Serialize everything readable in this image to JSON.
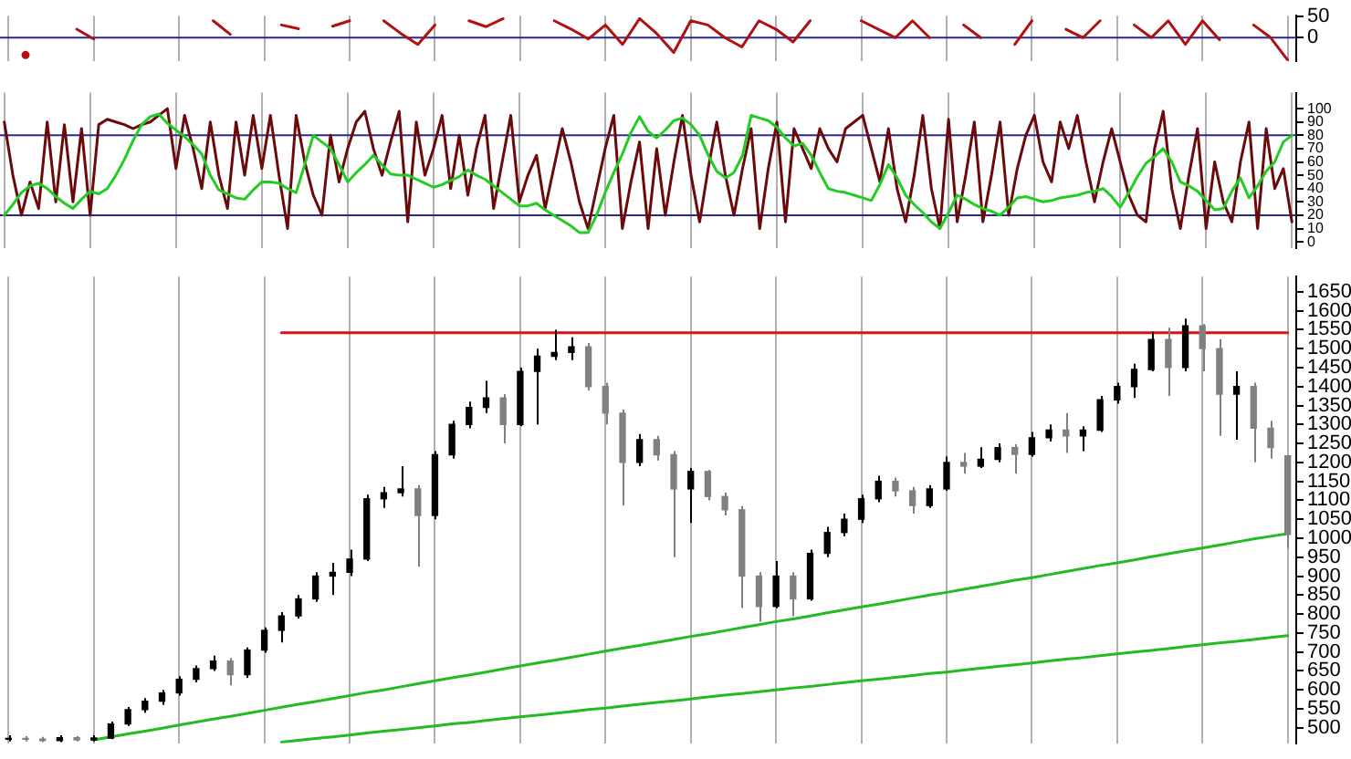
{
  "chart_data": [
    {
      "type": "line",
      "categories": [
        null,
        null,
        null,
        null,
        null,
        null,
        null,
        null,
        null,
        null,
        null,
        null,
        null,
        null,
        null,
        null,
        null,
        null,
        null,
        null,
        null,
        null,
        null,
        null,
        null,
        null,
        null,
        null,
        null,
        null,
        null,
        null,
        null,
        null,
        null,
        null,
        null,
        null,
        null,
        null,
        null,
        null,
        null,
        null,
        null,
        null,
        null,
        null,
        null,
        null,
        null,
        null,
        null,
        null,
        null,
        null,
        null,
        null,
        null,
        null,
        null,
        null,
        null,
        null,
        null,
        null,
        null,
        null,
        null,
        null,
        null,
        null,
        null,
        null,
        null,
        null
      ],
      "ylim": [
        -55,
        52
      ],
      "yticks": [
        0,
        50
      ],
      "tick_labels": "y",
      "grid": "x",
      "marker": "none",
      "ref_lines": [
        {
          "axis": "y",
          "value": 0,
          "color": "#2a2a8c"
        }
      ],
      "series": [
        {
          "color": "#b01010",
          "values": [
            null,
            -41,
            null,
            null,
            20,
            -3,
            null,
            null,
            null,
            null,
            null,
            null,
            40,
            8,
            null,
            null,
            30,
            21,
            null,
            27,
            40,
            null,
            40,
            10,
            -16,
            30,
            null,
            40,
            26,
            45,
            null,
            null,
            40,
            20,
            -3,
            30,
            -16,
            45,
            10,
            -35,
            40,
            30,
            0,
            -22,
            40,
            20,
            -10,
            40,
            null,
            null,
            40,
            20,
            0,
            40,
            0,
            null,
            30,
            0,
            null,
            -16,
            40,
            null,
            20,
            0,
            40,
            null,
            30,
            0,
            40,
            -16,
            40,
            -5,
            null,
            30,
            0,
            -53
          ]
        }
      ]
    },
    {
      "type": "line",
      "categories": [
        null,
        null,
        null,
        null,
        null,
        null,
        null,
        null,
        null,
        null,
        null,
        null,
        null,
        null,
        null,
        null,
        null,
        null,
        null,
        null,
        null,
        null,
        null,
        null,
        null,
        null,
        null,
        null,
        null,
        null,
        null,
        null,
        null,
        null,
        null,
        null,
        null,
        null,
        null,
        null,
        null,
        null,
        null,
        null,
        null,
        null,
        null,
        null,
        null,
        null,
        null,
        null,
        null,
        null,
        null,
        null,
        null,
        null,
        null,
        null,
        null,
        null,
        null,
        null,
        null,
        null,
        null,
        null,
        null,
        null,
        null,
        null,
        null,
        null,
        null,
        null,
        null,
        null,
        null,
        null,
        null,
        null,
        null,
        null,
        null,
        null,
        null,
        null,
        null,
        null,
        null,
        null,
        null,
        null,
        null,
        null,
        null,
        null,
        null,
        null,
        null,
        null,
        null,
        null,
        null,
        null,
        null,
        null,
        null,
        null,
        null,
        null,
        null,
        null,
        null,
        null,
        null,
        null,
        null,
        null,
        null,
        null,
        null,
        null,
        null,
        null,
        null,
        null,
        null,
        null,
        null,
        null,
        null,
        null,
        null,
        null,
        null,
        null,
        null,
        null,
        null,
        null,
        null,
        null,
        null,
        null,
        null,
        null,
        null,
        null,
        null
      ],
      "ylim": [
        -5,
        112
      ],
      "yticks": [
        0,
        10,
        20,
        30,
        40,
        50,
        60,
        70,
        80,
        90,
        100
      ],
      "tick_labels": "y",
      "grid": "x",
      "marker": "none",
      "ref_lines": [
        {
          "axis": "y",
          "value": 20,
          "color": "#2a2a8c"
        },
        {
          "axis": "y",
          "value": 80,
          "color": "#2a2a8c"
        }
      ],
      "series": [
        {
          "color": "#22cc22",
          "values": [
            20,
            28,
            37,
            42,
            44,
            40,
            34,
            29,
            25,
            32,
            38,
            36,
            40,
            50,
            62,
            76,
            88,
            94,
            96,
            89,
            84,
            79,
            73,
            66,
            50,
            39,
            36,
            33,
            32,
            39,
            45,
            45,
            44,
            40,
            37,
            58,
            80,
            75,
            70,
            58,
            45,
            52,
            58,
            65,
            58,
            51,
            50,
            50,
            47,
            44,
            41,
            43,
            46,
            49,
            54,
            50,
            47,
            42,
            37,
            32,
            27,
            27,
            29,
            24,
            20,
            16,
            12,
            7,
            7,
            20,
            37,
            52,
            66,
            82,
            94,
            83,
            78,
            84,
            91,
            93,
            88,
            80,
            65,
            53,
            48,
            52,
            65,
            95,
            93,
            91,
            86,
            78,
            72,
            74,
            65,
            52,
            40,
            38,
            37,
            35,
            33,
            31,
            43,
            58,
            48,
            35,
            28,
            22,
            15,
            10,
            22,
            35,
            32,
            28,
            25,
            23,
            20,
            26,
            33,
            34,
            32,
            30,
            31,
            33,
            34,
            35,
            37,
            38,
            40,
            34,
            26,
            37,
            49,
            59,
            64,
            70,
            60,
            45,
            42,
            38,
            31,
            24,
            25,
            38,
            48,
            33,
            42,
            53,
            60,
            75,
            80
          ]
        },
        {
          "color": "#6b0a0a",
          "values": [
            90,
            50,
            20,
            45,
            25,
            90,
            30,
            88,
            30,
            85,
            20,
            88,
            92,
            90,
            88,
            85,
            88,
            90,
            95,
            100,
            55,
            95,
            70,
            40,
            90,
            50,
            25,
            90,
            50,
            95,
            55,
            95,
            50,
            10,
            95,
            60,
            35,
            20,
            80,
            45,
            70,
            90,
            98,
            70,
            50,
            75,
            98,
            15,
            90,
            50,
            70,
            95,
            40,
            80,
            35,
            70,
            95,
            25,
            60,
            95,
            30,
            50,
            65,
            25,
            55,
            85,
            60,
            30,
            10,
            40,
            70,
            95,
            10,
            45,
            75,
            10,
            70,
            20,
            60,
            95,
            50,
            15,
            55,
            90,
            50,
            20,
            55,
            85,
            10,
            55,
            90,
            15,
            85,
            70,
            55,
            85,
            70,
            60,
            85,
            90,
            95,
            70,
            45,
            85,
            40,
            15,
            50,
            95,
            40,
            10,
            92,
            15,
            50,
            90,
            15,
            50,
            90,
            20,
            55,
            80,
            95,
            60,
            45,
            90,
            70,
            95,
            60,
            30,
            60,
            85,
            60,
            35,
            20,
            15,
            70,
            98,
            40,
            10,
            50,
            85,
            10,
            60,
            30,
            15,
            60,
            90,
            10,
            85,
            40,
            55,
            15
          ]
        }
      ]
    },
    {
      "type": "candlestick",
      "colors": [
        "#000000",
        "#808080",
        "#808080",
        "#000000",
        "#808080",
        "#000000",
        "#000000",
        "#000000",
        "#000000",
        "#000000",
        "#000000",
        "#000000",
        "#000000",
        "#808080",
        "#000000",
        "#000000",
        "#000000",
        "#000000",
        "#000000",
        "#000000",
        "#000000",
        "#000000",
        "#000000",
        "#000000",
        "#808080",
        "#000000",
        "#000000",
        "#000000",
        "#000000",
        "#808080",
        "#000000",
        "#000000",
        "#000000",
        "#000000",
        "#808080",
        "#808080",
        "#808080",
        "#000000",
        "#808080",
        "#808080",
        "#000000",
        "#808080",
        "#808080",
        "#808080",
        "#808080",
        "#000000",
        "#808080",
        "#000000",
        "#000000",
        "#000000",
        "#000000",
        "#000000",
        "#808080",
        "#808080",
        "#000000",
        "#000000",
        "#808080",
        "#000000",
        "#000000",
        "#808080",
        "#000000",
        "#000000",
        "#808080",
        "#000000",
        "#000000",
        "#000000",
        "#000000",
        "#000000",
        "#808080",
        "#000000",
        "#808080",
        "#808080",
        "#000000",
        "#808080",
        "#808080",
        "#808080"
      ],
      "categories": [
        null,
        null,
        null,
        null,
        null,
        null,
        null,
        null,
        null,
        null,
        null,
        null,
        null,
        null,
        null,
        null,
        null,
        null,
        null,
        null,
        null,
        null,
        null,
        null,
        null,
        null,
        null,
        null,
        null,
        null,
        null,
        null,
        null,
        null,
        null,
        null,
        null,
        null,
        null,
        null,
        null,
        null,
        null,
        null,
        null,
        null,
        null,
        null,
        null,
        null,
        null,
        null,
        null,
        null,
        null,
        null,
        null,
        null,
        null,
        null,
        null,
        null,
        null,
        null,
        null,
        null,
        null,
        null,
        null,
        null,
        null,
        null,
        null,
        null,
        null,
        null
      ],
      "ylim": [
        459,
        1690
      ],
      "yticks": [
        500,
        550,
        600,
        650,
        700,
        750,
        800,
        850,
        900,
        950,
        1000,
        1050,
        1100,
        1150,
        1200,
        1250,
        1300,
        1350,
        1400,
        1450,
        1500,
        1550,
        1600,
        1650
      ],
      "tick_labels": "y",
      "grid": "x",
      "ohlc": [
        [
          470,
          480,
          464,
          472
        ],
        [
          472,
          478,
          464,
          470
        ],
        [
          470,
          476,
          462,
          466
        ],
        [
          466,
          480,
          462,
          474
        ],
        [
          474,
          478,
          464,
          468
        ],
        [
          468,
          480,
          464,
          473
        ],
        [
          473,
          516,
          470,
          510
        ],
        [
          510,
          555,
          505,
          548
        ],
        [
          548,
          578,
          540,
          570
        ],
        [
          570,
          600,
          560,
          592
        ],
        [
          592,
          636,
          585,
          628
        ],
        [
          628,
          664,
          620,
          656
        ],
        [
          656,
          690,
          650,
          676
        ],
        [
          676,
          684,
          612,
          640
        ],
        [
          640,
          712,
          632,
          705
        ],
        [
          705,
          765,
          698,
          757
        ],
        [
          757,
          805,
          725,
          795
        ],
        [
          795,
          850,
          788,
          840
        ],
        [
          840,
          910,
          832,
          900
        ],
        [
          900,
          935,
          850,
          910
        ],
        [
          910,
          970,
          900,
          945
        ],
        [
          945,
          1115,
          940,
          1104
        ],
        [
          1104,
          1135,
          1080,
          1120
        ],
        [
          1120,
          1190,
          1110,
          1130
        ],
        [
          1130,
          1140,
          925,
          1060
        ],
        [
          1060,
          1230,
          1050,
          1220
        ],
        [
          1220,
          1310,
          1210,
          1300
        ],
        [
          1300,
          1360,
          1290,
          1345
        ],
        [
          1345,
          1415,
          1330,
          1370
        ],
        [
          1370,
          1380,
          1250,
          1300
        ],
        [
          1300,
          1450,
          1295,
          1440
        ],
        [
          1440,
          1500,
          1300,
          1480
        ],
        [
          1480,
          1550,
          1470,
          1490
        ],
        [
          1490,
          1530,
          1470,
          1505
        ],
        [
          1505,
          1515,
          1390,
          1400
        ],
        [
          1400,
          1410,
          1300,
          1330
        ],
        [
          1330,
          1340,
          1086,
          1200
        ],
        [
          1200,
          1275,
          1190,
          1260
        ],
        [
          1260,
          1270,
          1205,
          1220
        ],
        [
          1220,
          1230,
          950,
          1130
        ],
        [
          1130,
          1185,
          1040,
          1176
        ],
        [
          1176,
          1180,
          1100,
          1110
        ],
        [
          1110,
          1120,
          1060,
          1075
        ],
        [
          1075,
          1085,
          816,
          900
        ],
        [
          900,
          910,
          780,
          820
        ],
        [
          820,
          940,
          815,
          900
        ],
        [
          900,
          910,
          794,
          840
        ],
        [
          840,
          970,
          835,
          960
        ],
        [
          960,
          1030,
          950,
          1015
        ],
        [
          1015,
          1065,
          1005,
          1050
        ],
        [
          1050,
          1115,
          1040,
          1104
        ],
        [
          1104,
          1165,
          1095,
          1150
        ],
        [
          1150,
          1160,
          1110,
          1125
        ],
        [
          1125,
          1135,
          1065,
          1086
        ],
        [
          1086,
          1140,
          1080,
          1130
        ],
        [
          1130,
          1215,
          1125,
          1200
        ],
        [
          1200,
          1225,
          1170,
          1190
        ],
        [
          1190,
          1240,
          1185,
          1208
        ],
        [
          1208,
          1250,
          1200,
          1239
        ],
        [
          1239,
          1248,
          1170,
          1221
        ],
        [
          1221,
          1280,
          1215,
          1265
        ],
        [
          1265,
          1300,
          1255,
          1285
        ],
        [
          1285,
          1330,
          1225,
          1270
        ],
        [
          1270,
          1295,
          1230,
          1285
        ],
        [
          1285,
          1375,
          1280,
          1365
        ],
        [
          1365,
          1410,
          1355,
          1400
        ],
        [
          1400,
          1460,
          1370,
          1445
        ],
        [
          1445,
          1545,
          1440,
          1524
        ],
        [
          1524,
          1555,
          1375,
          1450
        ],
        [
          1450,
          1579,
          1440,
          1560
        ],
        [
          1560,
          1565,
          1440,
          1500
        ],
        [
          1500,
          1525,
          1270,
          1380
        ],
        [
          1380,
          1440,
          1260,
          1400
        ],
        [
          1400,
          1410,
          1200,
          1290
        ],
        [
          1290,
          1310,
          1210,
          1239
        ],
        [
          1217,
          1217,
          974,
          1010
        ]
      ],
      "series": [
        {
          "type": "line",
          "color": "#dd1111",
          "values": [
            null,
            null,
            null,
            null,
            null,
            null,
            null,
            null,
            null,
            null,
            null,
            null,
            null,
            null,
            null,
            null,
            1542,
            1542,
            1542,
            1542,
            1542,
            1542,
            1542,
            1542,
            1542,
            1542,
            1542,
            1542,
            1542,
            1542,
            1542,
            1542,
            1542,
            1542,
            1542,
            1542,
            1542,
            1542,
            1542,
            1542,
            1542,
            1542,
            1542,
            1542,
            1542,
            1542,
            1542,
            1542,
            1542,
            1542,
            1542,
            1542,
            1542,
            1542,
            1542,
            1542,
            1542,
            1542,
            1542,
            1542,
            1542,
            1542,
            1542,
            1542,
            1542,
            1542,
            1542,
            1542,
            1542,
            1542,
            1542,
            1542,
            1542,
            1542,
            1542,
            1542
          ]
        },
        {
          "type": "line",
          "color": "#22bb22",
          "values": [
            null,
            null,
            null,
            null,
            null,
            468,
            476,
            484,
            491,
            499,
            507,
            515,
            523,
            530,
            538,
            546,
            554,
            562,
            569,
            577,
            585,
            593,
            600,
            608,
            616,
            624,
            632,
            639,
            647,
            655,
            663,
            671,
            678,
            686,
            694,
            702,
            710,
            717,
            725,
            733,
            741,
            748,
            756,
            764,
            772,
            780,
            787,
            795,
            803,
            811,
            819,
            826,
            834,
            842,
            850,
            857,
            865,
            873,
            881,
            889,
            896,
            904,
            912,
            920,
            928,
            935,
            943,
            951,
            959,
            967,
            974,
            982,
            990,
            998,
            1005,
            1012
          ]
        },
        {
          "type": "line",
          "color": "#22bb22",
          "values": [
            null,
            null,
            null,
            null,
            null,
            null,
            null,
            null,
            null,
            null,
            null,
            null,
            null,
            null,
            null,
            null,
            462,
            467,
            472,
            476,
            481,
            486,
            491,
            495,
            500,
            505,
            510,
            514,
            519,
            524,
            529,
            533,
            538,
            543,
            548,
            552,
            557,
            562,
            567,
            571,
            576,
            581,
            586,
            590,
            595,
            600,
            605,
            609,
            614,
            619,
            624,
            628,
            633,
            638,
            643,
            647,
            652,
            657,
            662,
            666,
            671,
            676,
            681,
            685,
            690,
            695,
            700,
            704,
            709,
            714,
            719,
            724,
            728,
            733,
            738,
            743
          ]
        }
      ]
    }
  ]
}
